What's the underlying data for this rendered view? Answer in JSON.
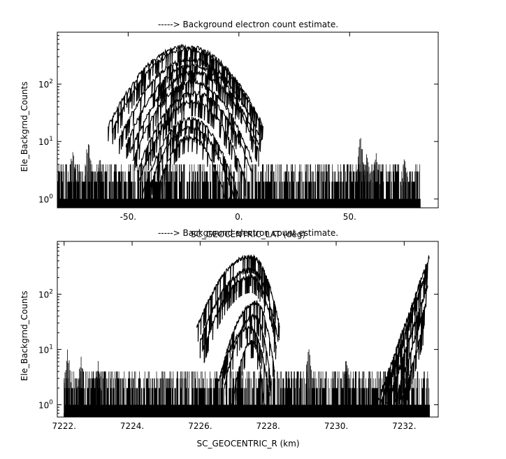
{
  "chart_data": [
    {
      "type": "line",
      "title": "-----> Background electron count estimate.",
      "xlabel": "SC_GEOCENTRIC_LAT (deg)",
      "ylabel": "Ele_Backgrnd_Counts",
      "xlim": [
        -82,
        90
      ],
      "ylim": [
        0.7,
        800
      ],
      "yscale": "log",
      "grid": false,
      "x_ticks": [
        -50,
        0,
        50
      ],
      "x_tick_labels": [
        "-50.",
        "0.",
        "50."
      ],
      "y_ticks": [
        {
          "base": "10",
          "exp": "2",
          "value": 100
        },
        {
          "base": "10",
          "exp": "1",
          "value": 10
        },
        {
          "base": "10",
          "exp": "0",
          "value": 1
        }
      ],
      "x_data_range": [
        -82,
        82
      ],
      "background_floor": [
        1,
        4
      ],
      "peaks": [
        {
          "x": -24,
          "y": 450,
          "halfwidth": 35
        },
        {
          "x": -23,
          "y": 400,
          "halfwidth": 34
        },
        {
          "x": -22,
          "y": 270,
          "halfwidth": 32
        },
        {
          "x": -21,
          "y": 210,
          "halfwidth": 30
        },
        {
          "x": -20,
          "y": 160,
          "halfwidth": 29
        },
        {
          "x": -21,
          "y": 110,
          "halfwidth": 27
        },
        {
          "x": -20,
          "y": 70,
          "halfwidth": 26
        },
        {
          "x": -21,
          "y": 50,
          "halfwidth": 24
        },
        {
          "x": -22,
          "y": 25,
          "halfwidth": 22
        },
        {
          "x": -22,
          "y": 18,
          "halfwidth": 21
        },
        {
          "x": -22,
          "y": 12,
          "halfwidth": 18
        }
      ],
      "spikes": [
        {
          "x": -68,
          "y": 12
        },
        {
          "x": -75,
          "y": 8
        },
        {
          "x": -63,
          "y": 6
        },
        {
          "x": 55,
          "y": 14
        },
        {
          "x": 58,
          "y": 8
        },
        {
          "x": 62,
          "y": 7
        },
        {
          "x": 75,
          "y": 6
        }
      ]
    },
    {
      "type": "line",
      "title": "-----> Background electron count estimate.",
      "xlabel": "SC_GEOCENTRIC_R (km)",
      "ylabel": "Ele_Backgrnd_Counts",
      "xlim": [
        7221.8,
        7233.0
      ],
      "ylim": [
        0.6,
        900
      ],
      "yscale": "log",
      "grid": false,
      "x_ticks": [
        7222,
        7224,
        7226,
        7228,
        7230,
        7232
      ],
      "x_tick_labels": [
        "7222.",
        "7224.",
        "7226.",
        "7228.",
        "7230.",
        "7232."
      ],
      "y_ticks": [
        {
          "base": "10",
          "exp": "2",
          "value": 100
        },
        {
          "base": "10",
          "exp": "1",
          "value": 10
        },
        {
          "base": "10",
          "exp": "0",
          "value": 1
        }
      ],
      "x_data_range": [
        7222.0,
        7232.75
      ],
      "background_floor": [
        1,
        4
      ],
      "arches": [
        {
          "x0": 7225.9,
          "x1": 7228.35,
          "y": 480
        },
        {
          "x0": 7226.0,
          "x1": 7228.3,
          "y": 280
        },
        {
          "x0": 7226.1,
          "x1": 7228.25,
          "y": 210
        },
        {
          "x0": 7226.6,
          "x1": 7228.2,
          "y": 70
        },
        {
          "x0": 7226.7,
          "x1": 7228.1,
          "y": 40
        },
        {
          "x0": 7226.4,
          "x1": 7228.05,
          "y": 25
        },
        {
          "x0": 7226.9,
          "x1": 7227.9,
          "y": 14
        }
      ],
      "ramps": [
        {
          "x0": 7231.2,
          "x1": 7232.75,
          "y": 500
        },
        {
          "x0": 7231.3,
          "x1": 7232.7,
          "y": 300
        },
        {
          "x0": 7231.5,
          "x1": 7232.7,
          "y": 150
        },
        {
          "x0": 7231.7,
          "x1": 7232.65,
          "y": 70
        },
        {
          "x0": 7231.9,
          "x1": 7232.6,
          "y": 30
        }
      ],
      "spikes": [
        {
          "x": 7222.1,
          "y": 10
        },
        {
          "x": 7222.5,
          "y": 8
        },
        {
          "x": 7223.0,
          "y": 7
        },
        {
          "x": 7229.2,
          "y": 12
        },
        {
          "x": 7230.3,
          "y": 8
        }
      ]
    }
  ]
}
